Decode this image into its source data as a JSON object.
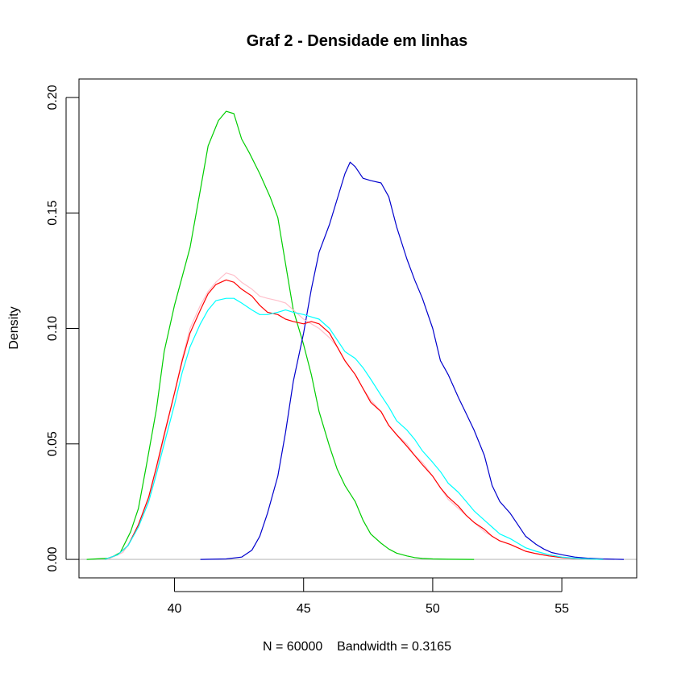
{
  "chart_data": {
    "type": "line",
    "title": "Graf 2 - Densidade em linhas",
    "xlabel": "N = 60000    Bandwidth = 0.3165",
    "ylabel": "Density",
    "xlim": [
      36.3,
      57.9
    ],
    "ylim": [
      -0.008,
      0.208
    ],
    "x_ticks": [
      40,
      45,
      50,
      55
    ],
    "x_tick_labels": [
      "40",
      "45",
      "50",
      "55"
    ],
    "y_ticks": [
      0,
      0.05,
      0.1,
      0.15,
      0.2
    ],
    "y_tick_labels": [
      "0.00",
      "0.05",
      "0.10",
      "0.15",
      "0.20"
    ],
    "grid": false,
    "baseline": {
      "y": 0,
      "color": "#bebebe"
    },
    "series": [
      {
        "color": "#00cd00",
        "x": [
          36.6,
          37.5,
          37.9,
          38.3,
          38.6,
          38.9,
          39.3,
          39.6,
          40.0,
          40.6,
          41.0,
          41.3,
          41.7,
          42.0,
          42.3,
          42.6,
          42.9,
          43.3,
          43.7,
          44.0,
          44.3,
          44.6,
          45.0,
          45.3,
          45.6,
          46.0,
          46.3,
          46.6,
          47.0,
          47.3,
          47.6,
          48.0,
          48.3,
          48.6,
          49.0,
          49.3,
          49.6,
          50.0,
          50.6,
          51.6
        ],
        "y": [
          0.0,
          0.0005,
          0.003,
          0.012,
          0.022,
          0.04,
          0.065,
          0.09,
          0.11,
          0.135,
          0.16,
          0.179,
          0.19,
          0.194,
          0.193,
          0.182,
          0.176,
          0.167,
          0.157,
          0.148,
          0.128,
          0.108,
          0.093,
          0.08,
          0.064,
          0.049,
          0.039,
          0.032,
          0.025,
          0.017,
          0.011,
          0.007,
          0.0045,
          0.0027,
          0.0015,
          0.0008,
          0.0004,
          0.0002,
          5e-05,
          0.0
        ]
      },
      {
        "color": "#0000cd",
        "x": [
          41.0,
          42.0,
          42.6,
          43.0,
          43.3,
          43.6,
          44.0,
          44.3,
          44.6,
          45.0,
          45.3,
          45.6,
          46.0,
          46.3,
          46.6,
          46.8,
          47.0,
          47.3,
          47.6,
          48.0,
          48.3,
          48.6,
          49.0,
          49.3,
          49.6,
          50.0,
          50.3,
          50.6,
          51.0,
          51.3,
          51.6,
          52.0,
          52.3,
          52.6,
          53.0,
          53.3,
          53.6,
          54.0,
          54.3,
          54.6,
          55.0,
          55.5,
          56.0,
          56.6,
          57.4
        ],
        "y": [
          0.0,
          0.0002,
          0.001,
          0.004,
          0.01,
          0.02,
          0.036,
          0.055,
          0.077,
          0.098,
          0.117,
          0.133,
          0.145,
          0.156,
          0.167,
          0.172,
          0.17,
          0.165,
          0.164,
          0.163,
          0.157,
          0.144,
          0.13,
          0.121,
          0.113,
          0.1,
          0.086,
          0.08,
          0.07,
          0.063,
          0.056,
          0.045,
          0.032,
          0.025,
          0.02,
          0.015,
          0.01,
          0.0065,
          0.0045,
          0.003,
          0.002,
          0.001,
          0.0005,
          0.0002,
          0.0
        ]
      },
      {
        "color": "#ffc0cb",
        "x": [
          37.4,
          38.0,
          38.3,
          38.6,
          39.0,
          39.3,
          39.6,
          40.0,
          40.3,
          40.6,
          41.0,
          41.3,
          41.6,
          42.0,
          42.3,
          42.6,
          43.0,
          43.3,
          43.6,
          44.0,
          44.3,
          44.6,
          45.0,
          45.3,
          45.6,
          46.0,
          46.3,
          46.6,
          47.0,
          47.3,
          47.6,
          48.0,
          48.3,
          48.6,
          49.0,
          49.3,
          49.6,
          50.0,
          50.3,
          50.6,
          51.0,
          51.3,
          51.6,
          52.0,
          52.3,
          52.6,
          53.0,
          53.3,
          53.6,
          54.0,
          54.5,
          55.0,
          55.5,
          56.0,
          56.6
        ],
        "y": [
          0.0,
          0.003,
          0.008,
          0.015,
          0.026,
          0.038,
          0.053,
          0.072,
          0.087,
          0.1,
          0.11,
          0.116,
          0.12,
          0.124,
          0.123,
          0.12,
          0.117,
          0.114,
          0.113,
          0.112,
          0.111,
          0.108,
          0.104,
          0.102,
          0.1,
          0.096,
          0.092,
          0.086,
          0.08,
          0.074,
          0.069,
          0.064,
          0.058,
          0.054,
          0.05,
          0.045,
          0.042,
          0.036,
          0.031,
          0.026,
          0.022,
          0.019,
          0.016,
          0.012,
          0.01,
          0.008,
          0.0065,
          0.005,
          0.0035,
          0.0025,
          0.0015,
          0.0008,
          0.0004,
          0.0002,
          0.0
        ]
      },
      {
        "color": "#ff0000",
        "x": [
          37.3,
          37.8,
          38.2,
          38.6,
          39.0,
          39.3,
          39.6,
          40.0,
          40.3,
          40.6,
          41.0,
          41.3,
          41.6,
          42.0,
          42.3,
          42.6,
          43.0,
          43.3,
          43.6,
          44.0,
          44.3,
          44.6,
          45.0,
          45.3,
          45.6,
          46.0,
          46.3,
          46.6,
          47.0,
          47.3,
          47.6,
          48.0,
          48.3,
          48.6,
          49.0,
          49.3,
          49.6,
          50.0,
          50.3,
          50.6,
          51.0,
          51.3,
          51.6,
          52.0,
          52.3,
          52.6,
          53.0,
          53.3,
          53.6,
          54.0,
          54.5,
          55.0,
          55.5,
          56.0,
          56.6
        ],
        "y": [
          0.0,
          0.002,
          0.006,
          0.015,
          0.027,
          0.04,
          0.054,
          0.072,
          0.086,
          0.098,
          0.108,
          0.115,
          0.119,
          0.121,
          0.12,
          0.117,
          0.114,
          0.11,
          0.107,
          0.106,
          0.104,
          0.103,
          0.102,
          0.103,
          0.102,
          0.098,
          0.092,
          0.086,
          0.08,
          0.074,
          0.068,
          0.064,
          0.058,
          0.054,
          0.049,
          0.045,
          0.041,
          0.036,
          0.031,
          0.027,
          0.023,
          0.019,
          0.016,
          0.013,
          0.01,
          0.008,
          0.0065,
          0.005,
          0.0035,
          0.0025,
          0.0015,
          0.0008,
          0.0004,
          0.0002,
          0.0
        ]
      },
      {
        "color": "#00ffff",
        "x": [
          37.3,
          37.8,
          38.2,
          38.6,
          39.0,
          39.3,
          39.6,
          40.0,
          40.3,
          40.6,
          41.0,
          41.3,
          41.6,
          42.0,
          42.3,
          42.6,
          43.0,
          43.3,
          43.6,
          44.0,
          44.3,
          44.6,
          45.0,
          45.3,
          45.6,
          46.0,
          46.3,
          46.6,
          47.0,
          47.3,
          47.6,
          48.0,
          48.3,
          48.6,
          49.0,
          49.3,
          49.6,
          50.0,
          50.3,
          50.6,
          51.0,
          51.3,
          51.6,
          52.0,
          52.3,
          52.6,
          53.0,
          53.3,
          53.6,
          54.0,
          54.5,
          55.0,
          55.5,
          56.0,
          56.6
        ],
        "y": [
          0.0,
          0.002,
          0.006,
          0.014,
          0.025,
          0.037,
          0.05,
          0.067,
          0.081,
          0.092,
          0.102,
          0.108,
          0.112,
          0.113,
          0.113,
          0.111,
          0.108,
          0.106,
          0.106,
          0.107,
          0.108,
          0.107,
          0.106,
          0.105,
          0.104,
          0.1,
          0.095,
          0.09,
          0.087,
          0.083,
          0.078,
          0.071,
          0.066,
          0.06,
          0.056,
          0.052,
          0.047,
          0.042,
          0.038,
          0.033,
          0.029,
          0.025,
          0.021,
          0.017,
          0.014,
          0.011,
          0.009,
          0.007,
          0.005,
          0.0035,
          0.002,
          0.001,
          0.0005,
          0.0002,
          0.0
        ]
      }
    ]
  }
}
